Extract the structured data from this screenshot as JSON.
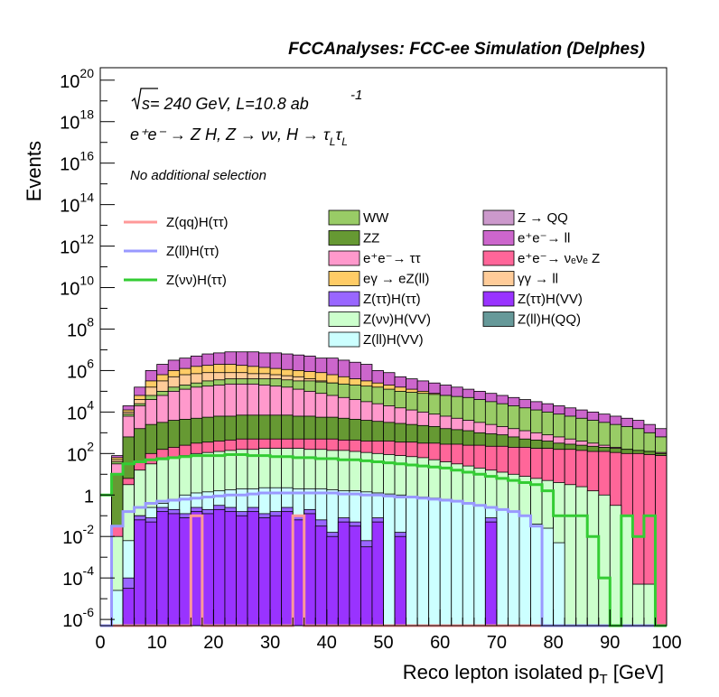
{
  "chart_data": {
    "type": "histogram",
    "title": "FCCAnalyses: FCC-ee Simulation (Delphes)",
    "xlabel": "Reco lepton isolated p",
    "xlabel_sub": "T",
    "xlabel_unit": "[GeV]",
    "ylabel": "Events",
    "xlim": [
      0,
      100
    ],
    "ylim_log10": [
      -6.3,
      20.6
    ],
    "yscale": "log",
    "bin_width": 2,
    "x_ticks": [
      0,
      10,
      20,
      30,
      40,
      50,
      60,
      70,
      80,
      90,
      100
    ],
    "y_ticks": [
      {
        "base": "10",
        "exp": "20",
        "pow": 20
      },
      {
        "base": "10",
        "exp": "18",
        "pow": 18
      },
      {
        "base": "10",
        "exp": "16",
        "pow": 16
      },
      {
        "base": "10",
        "exp": "14",
        "pow": 14
      },
      {
        "base": "10",
        "exp": "12",
        "pow": 12
      },
      {
        "base": "10",
        "exp": "10",
        "pow": 10
      },
      {
        "base": "10",
        "exp": "8",
        "pow": 8
      },
      {
        "base": "10",
        "exp": "6",
        "pow": 6
      },
      {
        "base": "10",
        "exp": "4",
        "pow": 4
      },
      {
        "base": "10",
        "exp": "2",
        "pow": 2
      },
      {
        "base": "1",
        "exp": "",
        "pow": 0
      },
      {
        "base": "10",
        "exp": "-2",
        "pow": -2
      },
      {
        "base": "10",
        "exp": "-4",
        "pow": -4
      },
      {
        "base": "10",
        "exp": "-6",
        "pow": -6
      }
    ],
    "annotations": {
      "sqrt_s": "s",
      "energy": " = 240 GeV, L=10.8 ab",
      "lumi_exp": "-1",
      "process": "e⁺e⁻ → Z H, Z → νν, H → τ",
      "sub_L": "L",
      "selection": "No additional selection"
    },
    "stack_legend": [
      {
        "label": "WW",
        "color": "#99cc66"
      },
      {
        "label": "ZZ",
        "color": "#669933"
      },
      {
        "label": "e⁺e⁻→ ττ",
        "color": "#ff99cc"
      },
      {
        "label": "eγ → eZ(ll)",
        "color": "#ffcc66"
      },
      {
        "label": "Z(ττ)H(ττ)",
        "color": "#9966ff"
      },
      {
        "label": "Z(νν)H(VV)",
        "color": "#ccffcc"
      },
      {
        "label": "Z(ll)H(VV)",
        "color": "#ccffff"
      },
      {
        "label": "Z → QQ",
        "color": "#cc99cc"
      },
      {
        "label": "e⁺e⁻→ ll",
        "color": "#cc66cc"
      },
      {
        "label": "e⁺e⁻→ νₑνₑ Z",
        "color": "#ff6699"
      },
      {
        "label": "γγ → ll",
        "color": "#ffcc99"
      },
      {
        "label": "Z(ττ)H(VV)",
        "color": "#9933ff"
      },
      {
        "label": "Z(ll)H(QQ)",
        "color": "#669999"
      }
    ],
    "signal_legend": [
      {
        "label": "Z(qq)H(ττ)",
        "color": "#ff9999"
      },
      {
        "label": "Z(ll)H(ττ)",
        "color": "#9999ff"
      },
      {
        "label": "Z(νν)H(ττ)",
        "color": "#33cc33"
      }
    ],
    "stacked_log10_boundaries": [
      {
        "name": "Z(ττ)H(VV)",
        "color": "#9933ff",
        "values": [
          -7,
          -7,
          -4.5,
          -1.2,
          -1.3,
          -0.8,
          -0.9,
          -1.1,
          -0.8,
          -0.9,
          -0.7,
          -0.8,
          -1.0,
          -0.8,
          -1.1,
          -1.0,
          -0.8,
          -1.2,
          -0.9,
          -1.5,
          -2.0,
          -1.3,
          -1.5,
          -2.5,
          -1.3,
          -7,
          -2.0,
          -7,
          -7,
          -7,
          -7,
          -7,
          -7,
          -7,
          -1.3,
          -7,
          -7,
          -7,
          -7,
          -7,
          -7,
          -7,
          -7,
          -7,
          -7,
          -7,
          -7,
          -7,
          -7,
          -7
        ]
      },
      {
        "name": "Z(ττ)H(ττ)",
        "color": "#9966ff",
        "values": [
          -7,
          -7,
          -4.0,
          -1.0,
          -1.1,
          -0.6,
          -0.7,
          -0.9,
          -0.6,
          -0.7,
          -0.5,
          -0.6,
          -0.8,
          -0.6,
          -0.9,
          -0.8,
          -0.6,
          -1.0,
          -0.7,
          -1.2,
          -1.8,
          -1.1,
          -1.3,
          -2.2,
          -1.1,
          -7,
          -1.8,
          -7,
          -7,
          -7,
          -7,
          -7,
          -7,
          -7,
          -1.1,
          -7,
          -7,
          -7,
          -7,
          -7,
          -7,
          -7,
          -7,
          -7,
          -7,
          -7,
          -7,
          -7,
          -7,
          -7
        ]
      },
      {
        "name": "Z(ll)H(VV)",
        "color": "#ccffff",
        "values": [
          -7,
          -4.6,
          -2.2,
          -1.0,
          -0.6,
          -0.4,
          -0.2,
          0.0,
          0.1,
          0.15,
          0.2,
          0.25,
          0.3,
          0.3,
          0.35,
          0.35,
          0.35,
          0.3,
          0.3,
          0.3,
          0.25,
          0.2,
          0.2,
          0.15,
          0.1,
          0.05,
          0.0,
          -0.05,
          -0.1,
          -0.15,
          -0.2,
          -0.3,
          -0.4,
          -0.5,
          -0.6,
          -0.7,
          -0.8,
          -1.0,
          -1.4,
          -1.6,
          -2.3,
          -7,
          -7,
          -7,
          -7,
          -7,
          -7,
          -7,
          -7,
          -7
        ]
      },
      {
        "name": "Z(νν)H(VV)",
        "color": "#ccffcc",
        "values": [
          -7,
          -2.0,
          0.5,
          1.2,
          1.5,
          1.7,
          1.8,
          1.9,
          2.0,
          2.05,
          2.1,
          2.15,
          2.2,
          2.2,
          2.25,
          2.25,
          2.25,
          2.25,
          2.2,
          2.2,
          2.15,
          2.15,
          2.1,
          2.05,
          2.0,
          1.95,
          1.9,
          1.85,
          1.8,
          1.7,
          1.6,
          1.5,
          1.4,
          1.3,
          1.2,
          1.1,
          1.0,
          0.9,
          0.8,
          0.7,
          0.6,
          0.5,
          0.4,
          0.2,
          0.0,
          -0.5,
          -1.0,
          -4.3,
          -4.3,
          -7
        ]
      },
      {
        "name": "e⁺e⁻→ νₑνₑ Z",
        "color": "#ff6699",
        "values": [
          -7,
          -1.5,
          0.8,
          1.6,
          2.0,
          2.2,
          2.3,
          2.4,
          2.5,
          2.55,
          2.6,
          2.65,
          2.7,
          2.7,
          2.7,
          2.7,
          2.7,
          2.7,
          2.7,
          2.7,
          2.7,
          2.65,
          2.65,
          2.6,
          2.6,
          2.6,
          2.55,
          2.55,
          2.5,
          2.5,
          2.45,
          2.45,
          2.4,
          2.4,
          2.35,
          2.35,
          2.3,
          2.3,
          2.25,
          2.25,
          2.2,
          2.2,
          2.15,
          2.1,
          2.1,
          2.05,
          2.0,
          2.0,
          1.95,
          1.9
        ]
      },
      {
        "name": "ZZ",
        "color": "#669933",
        "values": [
          -7,
          1.0,
          2.8,
          3.2,
          3.4,
          3.5,
          3.6,
          3.65,
          3.7,
          3.75,
          3.8,
          3.8,
          3.85,
          3.85,
          3.85,
          3.85,
          3.85,
          3.8,
          3.8,
          3.75,
          3.75,
          3.7,
          3.65,
          3.6,
          3.55,
          3.5,
          3.45,
          3.4,
          3.35,
          3.3,
          3.2,
          3.15,
          3.1,
          3.0,
          2.95,
          2.9,
          2.8,
          2.7,
          2.65,
          2.6,
          2.5,
          2.45,
          2.4,
          2.35,
          2.3,
          2.25,
          2.2,
          2.15,
          2.1,
          2.0
        ]
      },
      {
        "name": "e⁺e⁻→ ττ",
        "color": "#ff99cc",
        "values": [
          -7,
          1.5,
          3.8,
          4.3,
          4.6,
          4.8,
          5.0,
          5.1,
          5.2,
          5.25,
          5.3,
          5.35,
          5.35,
          5.35,
          5.3,
          5.25,
          5.2,
          5.1,
          5.0,
          4.9,
          4.8,
          4.7,
          4.6,
          4.5,
          4.4,
          4.3,
          4.2,
          4.1,
          4.0,
          3.9,
          3.8,
          3.7,
          3.6,
          3.5,
          3.4,
          3.3,
          3.2,
          3.1,
          3.0,
          2.9,
          2.8,
          2.7,
          2.6,
          2.5,
          2.4,
          2.3,
          2.2,
          2.15,
          2.1,
          2.05
        ]
      },
      {
        "name": "WW",
        "color": "#99cc66",
        "values": [
          -7,
          1.6,
          3.9,
          4.4,
          4.8,
          5.0,
          5.2,
          5.3,
          5.4,
          5.5,
          5.55,
          5.6,
          5.6,
          5.6,
          5.6,
          5.6,
          5.55,
          5.5,
          5.5,
          5.45,
          5.4,
          5.35,
          5.3,
          5.25,
          5.2,
          5.1,
          5.0,
          4.95,
          4.9,
          4.85,
          4.8,
          4.75,
          4.7,
          4.6,
          4.5,
          4.4,
          4.3,
          4.2,
          4.1,
          4.0,
          3.9,
          3.8,
          3.7,
          3.6,
          3.5,
          3.4,
          3.3,
          3.2,
          3.0,
          2.8
        ]
      },
      {
        "name": "γγ → ll",
        "color": "#ffcc99",
        "values": [
          -7,
          1.7,
          4.0,
          4.6,
          5.2,
          5.5,
          5.7,
          5.8,
          5.85,
          5.9,
          5.9,
          5.9,
          5.9,
          5.85,
          5.85,
          5.8,
          5.75,
          5.7,
          5.6,
          5.5,
          5.4,
          5.3,
          5.2,
          5.1,
          5.0,
          4.95,
          4.9,
          4.85,
          4.8,
          4.75,
          4.7,
          4.6,
          4.5,
          4.4,
          4.3,
          4.2,
          4.1,
          4.0,
          3.9,
          3.8,
          3.7,
          3.6,
          3.5,
          3.4,
          3.3,
          3.2,
          3.1,
          3.0,
          2.9,
          2.8
        ]
      },
      {
        "name": "eγ → eZ(ll)",
        "color": "#ffcc66",
        "values": [
          -7,
          1.8,
          4.1,
          4.8,
          5.5,
          5.8,
          6.0,
          6.1,
          6.2,
          6.25,
          6.3,
          6.3,
          6.25,
          6.2,
          6.15,
          6.1,
          6.05,
          6.0,
          5.95,
          5.9,
          5.8,
          5.7,
          5.6,
          5.5,
          5.4,
          5.3,
          5.2,
          5.1,
          5.0,
          4.9,
          4.8,
          4.7,
          4.6,
          4.5,
          4.4,
          4.3,
          4.2,
          4.1,
          4.0,
          3.9,
          3.8,
          3.7,
          3.6,
          3.5,
          3.4,
          3.3,
          3.2,
          3.1,
          3.0,
          2.8
        ]
      },
      {
        "name": "e⁺e⁻→ ll",
        "color": "#cc66cc",
        "values": [
          -7,
          1.9,
          4.3,
          5.2,
          6.0,
          6.3,
          6.5,
          6.6,
          6.7,
          6.8,
          6.85,
          6.9,
          6.9,
          6.9,
          6.85,
          6.85,
          6.8,
          6.75,
          6.7,
          6.6,
          6.6,
          6.5,
          6.4,
          6.3,
          6.0,
          5.9,
          5.7,
          5.6,
          5.5,
          5.4,
          5.3,
          5.2,
          5.1,
          5.0,
          4.9,
          4.8,
          4.7,
          4.6,
          4.5,
          4.4,
          4.3,
          4.2,
          4.1,
          4.0,
          3.9,
          3.8,
          3.7,
          3.6,
          3.4,
          3.2
        ]
      },
      {
        "name": "Z → QQ",
        "color": "#cc99cc",
        "values": [
          -7,
          -3.5,
          -1.0,
          0.5,
          0.5,
          -7,
          -7,
          -7,
          -7,
          -7,
          -7,
          -7,
          -7,
          -7,
          -7,
          -7,
          -7,
          -7,
          -7,
          -7,
          -7,
          -7,
          -7,
          -7,
          -7,
          -7,
          -7,
          -7,
          -7,
          -7,
          -7,
          -7,
          -7,
          -7,
          -7,
          -7,
          -7,
          -7,
          -7,
          -7,
          -7,
          -7,
          -7,
          -7,
          -7,
          -7,
          -7,
          -7,
          -7,
          -7
        ]
      },
      {
        "name": "Z(ll)H(QQ)",
        "color": "#669999",
        "values": [
          -7,
          -7,
          -7,
          -7,
          -7,
          -7,
          -7,
          -7,
          -7,
          -7,
          -7,
          -7,
          -7,
          -7,
          -7,
          -7,
          -7,
          -7,
          -7,
          -7,
          -7,
          -7,
          -7,
          -7,
          -7,
          -7,
          -2.0,
          -7,
          -7,
          -7,
          -7,
          -7,
          -7,
          -7,
          -7,
          -7,
          -7,
          -7,
          -7,
          -7,
          -7,
          -7,
          -7,
          -7,
          -7,
          -7,
          -7,
          -7,
          -7,
          -7
        ]
      }
    ],
    "signal_log10": [
      {
        "name": "Z(qq)H(ττ)",
        "color": "#ff9999",
        "values": [
          -7,
          -7,
          -7,
          -7,
          -7,
          -7,
          -7,
          -7,
          -1.0,
          -7,
          -7,
          -7,
          -7,
          -7,
          -7,
          -7,
          -7,
          -1.0,
          -7,
          -7,
          -7,
          -7,
          -7,
          -7,
          -7,
          -7,
          -7,
          -7,
          -7,
          -7,
          -7,
          -7,
          -7,
          -7,
          -7,
          -7,
          -7,
          -7,
          -7,
          -7,
          -7,
          -7,
          -7,
          -7,
          -7,
          -7,
          -7,
          -7,
          -7,
          -7
        ]
      },
      {
        "name": "Z(ll)H(ττ)",
        "color": "#9999ff",
        "values": [
          -7,
          -1.5,
          -0.8,
          -0.6,
          -0.4,
          -0.3,
          -0.25,
          -0.2,
          -0.15,
          -0.1,
          -0.05,
          0.0,
          0.0,
          0.05,
          0.1,
          0.1,
          0.1,
          0.1,
          0.1,
          0.1,
          0.1,
          0.05,
          0.05,
          0.0,
          0.0,
          -0.05,
          -0.1,
          -0.1,
          -0.15,
          -0.2,
          -0.25,
          -0.3,
          -0.4,
          -0.5,
          -0.6,
          -0.7,
          -0.8,
          -1.0,
          -1.5,
          -7,
          -7,
          -7,
          -7,
          -7,
          -7,
          -7,
          -7,
          -7,
          -7,
          -7
        ]
      },
      {
        "name": "Z(νν)H(ττ)",
        "color": "#33cc33",
        "values": [
          0.0,
          1.0,
          1.5,
          1.6,
          1.7,
          1.75,
          1.8,
          1.85,
          1.9,
          1.9,
          1.9,
          1.95,
          1.95,
          1.9,
          1.9,
          1.85,
          1.85,
          1.8,
          1.8,
          1.75,
          1.75,
          1.7,
          1.7,
          1.65,
          1.6,
          1.55,
          1.5,
          1.45,
          1.4,
          1.35,
          1.3,
          1.2,
          1.1,
          1.0,
          0.9,
          0.8,
          0.7,
          0.6,
          0.5,
          0.2,
          -1.0,
          -1.0,
          -1.0,
          -2.0,
          -4.0,
          -7,
          -1.0,
          -2.0,
          -1.0,
          -7
        ]
      }
    ]
  }
}
